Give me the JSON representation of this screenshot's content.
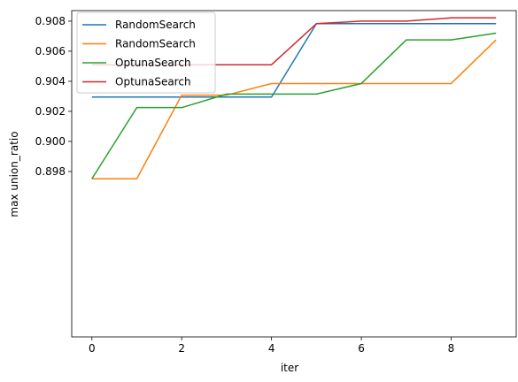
{
  "chart_data": {
    "type": "line",
    "title": "",
    "xlabel": "iter",
    "ylabel": "max union_ratio",
    "x": [
      0,
      1,
      2,
      3,
      4,
      5,
      6,
      7,
      8,
      9
    ],
    "xlim": [
      -0.45,
      9.45
    ],
    "ylim": [
      0.887,
      0.9087
    ],
    "xticks": [
      0,
      2,
      4,
      6,
      8
    ],
    "xtick_labels": [
      "0",
      "2",
      "4",
      "6",
      "8"
    ],
    "yticks": [
      0.898,
      0.9,
      0.902,
      0.904,
      0.906,
      0.908
    ],
    "ytick_labels": [
      "0.898",
      "0.900",
      "0.902",
      "0.904",
      "0.906",
      "0.908"
    ],
    "grid": false,
    "legend_position": "top-left",
    "series": [
      {
        "name": "RandomSearch",
        "color": "#1f77b4",
        "values": [
          0.90295,
          0.90295,
          0.90295,
          0.90295,
          0.90295,
          0.90783,
          0.90783,
          0.90783,
          0.90783,
          0.90783
        ]
      },
      {
        "name": "RandomSearch",
        "color": "#ff7f0e",
        "values": [
          0.89752,
          0.89752,
          0.90308,
          0.90308,
          0.90385,
          0.90385,
          0.90385,
          0.90385,
          0.90385,
          0.90675
        ]
      },
      {
        "name": "OptunaSearch",
        "color": "#2ca02c",
        "values": [
          0.89752,
          0.90225,
          0.90225,
          0.90315,
          0.90315,
          0.90315,
          0.90385,
          0.90675,
          0.90675,
          0.9072
        ]
      },
      {
        "name": "OptunaSearch",
        "color": "#d62728",
        "values": [
          0.9051,
          0.9051,
          0.9051,
          0.9051,
          0.9051,
          0.90783,
          0.908,
          0.908,
          0.90822,
          0.90822
        ]
      }
    ]
  }
}
